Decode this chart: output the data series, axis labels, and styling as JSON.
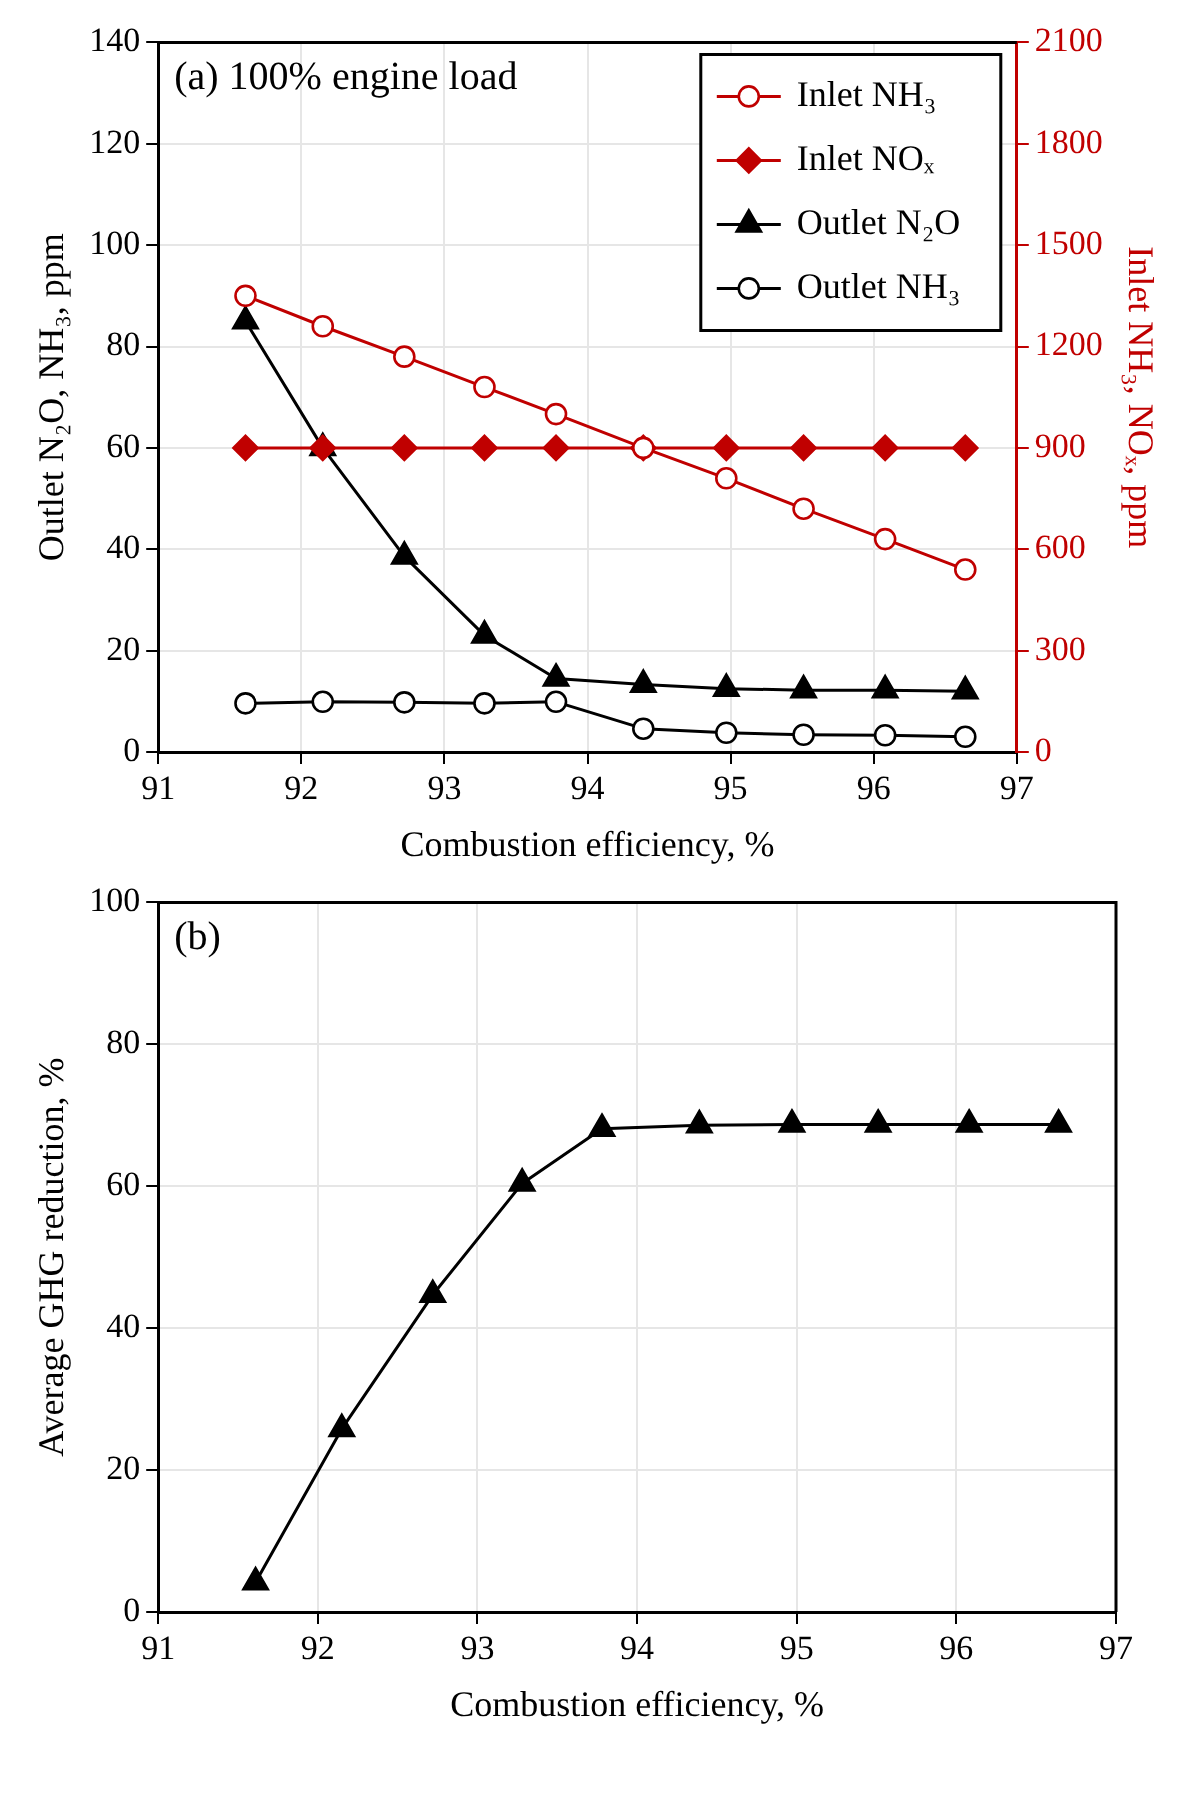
{
  "chart_data": [
    {
      "type": "line",
      "annotations": [
        "(a) 100% engine load"
      ],
      "xlabel": "Combustion efficiency, %",
      "ylabel": "Outlet N₂O, NH₃, ppm",
      "y2label": "Inlet NH₃, NOₓ, ppm",
      "x": [
        91.61,
        92.15,
        92.72,
        93.28,
        93.78,
        94.39,
        94.97,
        95.51,
        96.08,
        96.64
      ],
      "series": [
        {
          "name": "Inlet NH₃",
          "color": "#c00000",
          "axis": "y2",
          "marker": "circle",
          "values": [
            1350,
            1260,
            1170,
            1080,
            1000,
            900,
            810,
            720,
            630,
            540
          ]
        },
        {
          "name": "Inlet NOₓ",
          "color": "#c00000",
          "axis": "y2",
          "marker": "diamond",
          "values": [
            900,
            900,
            900,
            900,
            900,
            900,
            900,
            900,
            900,
            900
          ]
        },
        {
          "name": "Outlet N₂O",
          "color": "#000000",
          "marker": "triangle",
          "values": [
            85,
            60,
            38.6,
            23,
            14.5,
            13.3,
            12.5,
            12.2,
            12.2,
            12
          ]
        },
        {
          "name": "Outlet NH₃",
          "color": "#000000",
          "marker": "circle",
          "values": [
            9.6,
            9.9,
            9.8,
            9.6,
            9.9,
            4.6,
            3.8,
            3.4,
            3.3,
            3
          ]
        }
      ],
      "xlim": [
        91,
        97
      ],
      "xticks": [
        91,
        92,
        93,
        94,
        95,
        96,
        97
      ],
      "ylim": [
        0,
        140
      ],
      "yticks": [
        0,
        20,
        40,
        60,
        80,
        100,
        120,
        140
      ],
      "y2lim": [
        0,
        2100
      ],
      "y2ticks": [
        0,
        300,
        600,
        900,
        1200,
        1500,
        1800,
        2100
      ],
      "grid": true,
      "legend": "top right"
    },
    {
      "type": "line",
      "annotations": [
        "(b)"
      ],
      "xlabel": "Combustion efficiency, %",
      "ylabel": "Average GHG reduction, %",
      "x": [
        91.61,
        92.15,
        92.72,
        93.28,
        93.78,
        94.39,
        94.97,
        95.51,
        96.08,
        96.64
      ],
      "series": [
        {
          "color": "#000000",
          "marker": "triangle",
          "values": [
            4.2,
            25.8,
            44.7,
            60.4,
            68.1,
            68.6,
            68.7,
            68.7,
            68.7,
            68.7
          ]
        }
      ],
      "xlim": [
        91,
        97
      ],
      "xticks": [
        91,
        92,
        93,
        94,
        95,
        96,
        97
      ],
      "ylim": [
        0,
        100
      ],
      "yticks": [
        0,
        20,
        40,
        60,
        80,
        100
      ],
      "grid": true,
      "legend": false
    }
  ]
}
